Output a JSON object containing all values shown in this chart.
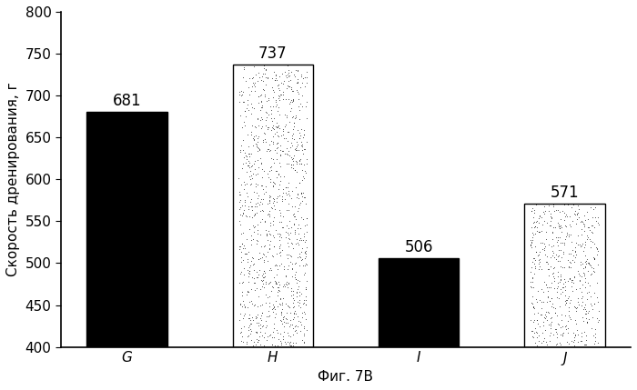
{
  "categories": [
    "G",
    "H",
    "I",
    "J"
  ],
  "values": [
    681,
    737,
    506,
    571
  ],
  "bar_styles": [
    "solid_black",
    "dotted_light",
    "solid_black",
    "dotted_light"
  ],
  "ylabel": "Скорость дренирования, г",
  "xlabel": "Фиг. 7В",
  "ylim": [
    400,
    800
  ],
  "yticks": [
    400,
    450,
    500,
    550,
    600,
    650,
    700,
    750,
    800
  ],
  "title": "",
  "value_labels": [
    "681",
    "737",
    "506",
    "571"
  ],
  "label_fontsize": 12,
  "axis_fontsize": 11,
  "tick_fontsize": 11,
  "dot_size": 0.3,
  "dot_density_factor": 6,
  "bar_width": 0.55
}
